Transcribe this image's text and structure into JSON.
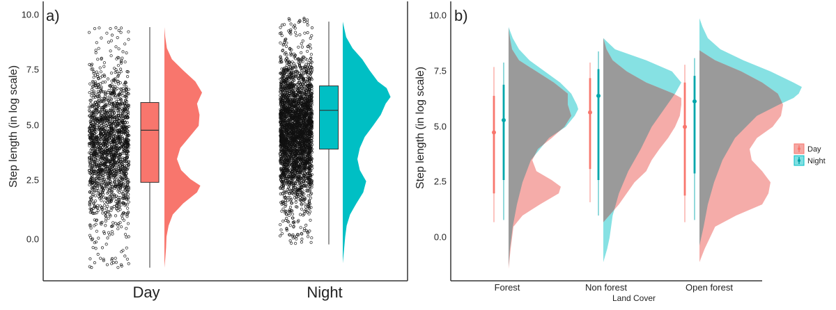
{
  "panel_a": {
    "label": "a)",
    "ylabel": "Step length (in log scale)",
    "yticks": [
      "0.0",
      "2.5",
      "5.0",
      "7.5",
      "10.0"
    ]
  },
  "panel_b": {
    "label": "b)",
    "ylabel": "Step length (in log scale)",
    "xlabel": "Land Cover",
    "yticks": [
      "0.0",
      "2.5",
      "5.0",
      "7.5",
      "10.0"
    ],
    "legend_title": ""
  },
  "colors": {
    "day": "#f8766d",
    "night": "#00bfc4",
    "day_light": "#f4a8a4",
    "night_light": "#7fdfe2",
    "overlap": "#9a9a9a"
  },
  "chart_data": [
    {
      "type": "raincloud",
      "ylim": [
        -1.7,
        10.2
      ],
      "categories": [
        "Day",
        "Night"
      ],
      "series": [
        {
          "name": "Day",
          "box": {
            "min": -1.4,
            "q1": 2.45,
            "median": 4.8,
            "q3": 6.05,
            "max": 9.45
          },
          "density": {
            "y": [
              -1.4,
              -1.0,
              -0.5,
              0.0,
              0.5,
              1.0,
              1.5,
              2.0,
              2.3,
              2.6,
              3.0,
              3.5,
              4.0,
              4.5,
              5.0,
              5.5,
              6.0,
              6.5,
              7.0,
              7.5,
              8.0,
              8.5,
              9.0,
              9.45
            ],
            "d": [
              0.0,
              0.02,
              0.04,
              0.05,
              0.1,
              0.2,
              0.45,
              0.78,
              0.86,
              0.62,
              0.4,
              0.3,
              0.38,
              0.6,
              0.82,
              0.84,
              0.78,
              0.9,
              0.74,
              0.45,
              0.18,
              0.06,
              0.02,
              0.0
            ]
          },
          "points": {
            "count": 1800,
            "range": [
              -1.4,
              9.45
            ]
          }
        },
        {
          "name": "Night",
          "box": {
            "min": -0.35,
            "q1": 3.95,
            "median": 5.7,
            "q3": 6.8,
            "max": 9.7
          },
          "density": {
            "y": [
              -1.2,
              -0.5,
              0.0,
              0.5,
              1.0,
              1.5,
              2.0,
              2.5,
              3.0,
              3.5,
              4.0,
              4.5,
              5.0,
              5.5,
              6.0,
              6.3,
              6.7,
              7.0,
              7.5,
              8.0,
              8.5,
              9.0,
              9.7
            ],
            "d": [
              0.0,
              0.03,
              0.05,
              0.08,
              0.15,
              0.28,
              0.42,
              0.48,
              0.35,
              0.3,
              0.35,
              0.45,
              0.62,
              0.78,
              0.88,
              0.98,
              0.9,
              0.72,
              0.55,
              0.4,
              0.2,
              0.07,
              0.0
            ]
          },
          "points": {
            "count": 3000,
            "range": [
              -0.35,
              9.85
            ]
          }
        }
      ]
    },
    {
      "type": "halfviolin-pointrange",
      "ylim": [
        -1.7,
        10.2
      ],
      "categories": [
        "Forest",
        "Non forest",
        "Open forest"
      ],
      "legend": [
        "Day",
        "Night"
      ],
      "series": [
        {
          "name": "Day",
          "pointrange": [
            {
              "category": "Forest",
              "point": 4.75,
              "inner": [
                2.0,
                6.4
              ],
              "outer": [
                0.7,
                7.7
              ]
            },
            {
              "category": "Non forest",
              "point": 5.65,
              "inner": [
                3.1,
                7.2
              ],
              "outer": [
                1.6,
                7.9
              ]
            },
            {
              "category": "Open forest",
              "point": 5.0,
              "inner": [
                1.9,
                7.0
              ],
              "outer": [
                0.7,
                7.8
              ]
            }
          ],
          "density": [
            {
              "category": "Forest",
              "y": [
                -1.4,
                -0.5,
                0.5,
                1.0,
                1.5,
                2.0,
                2.3,
                2.6,
                3.0,
                3.5,
                4.0,
                4.5,
                5.0,
                5.5,
                6.0,
                6.5,
                7.0,
                7.5,
                8.0,
                8.5,
                9.0,
                9.45
              ],
              "d": [
                0.0,
                0.03,
                0.07,
                0.2,
                0.45,
                0.72,
                0.75,
                0.62,
                0.4,
                0.34,
                0.42,
                0.62,
                0.8,
                0.9,
                0.85,
                0.85,
                0.65,
                0.4,
                0.15,
                0.05,
                0.02,
                0.0
              ]
            },
            {
              "category": "Non forest",
              "y": [
                0.7,
                1.5,
                2.5,
                3.0,
                3.5,
                4.0,
                4.5,
                5.0,
                5.5,
                6.0,
                6.3,
                6.5,
                7.0,
                7.5,
                8.0,
                8.5,
                9.0
              ],
              "d": [
                0.0,
                0.2,
                0.4,
                0.55,
                0.62,
                0.72,
                0.83,
                0.92,
                0.98,
                1.0,
                1.0,
                0.9,
                0.55,
                0.3,
                0.12,
                0.04,
                0.0
              ]
            },
            {
              "category": "Open forest",
              "y": [
                -1.1,
                -0.5,
                0.5,
                1.0,
                1.5,
                2.0,
                2.5,
                3.0,
                3.5,
                4.0,
                4.5,
                5.0,
                5.5,
                6.0,
                6.5,
                7.0,
                7.5,
                8.0,
                8.45
              ],
              "d": [
                0.0,
                0.05,
                0.15,
                0.35,
                0.6,
                0.66,
                0.68,
                0.6,
                0.5,
                0.48,
                0.55,
                0.7,
                0.78,
                0.8,
                0.75,
                0.6,
                0.4,
                0.15,
                0.0
              ]
            }
          ]
        },
        {
          "name": "Night",
          "pointrange": [
            {
              "category": "Forest",
              "point": 5.3,
              "inner": [
                2.6,
                6.9
              ],
              "outer": [
                0.8,
                7.9
              ]
            },
            {
              "category": "Non forest",
              "point": 6.4,
              "inner": [
                2.6,
                7.6
              ],
              "outer": [
                1.0,
                8.4
              ]
            },
            {
              "category": "Open forest",
              "point": 6.15,
              "inner": [
                2.9,
                7.3
              ],
              "outer": [
                0.8,
                8.1
              ]
            }
          ],
          "density": [
            {
              "category": "Forest",
              "y": [
                -1.3,
                -0.5,
                0.5,
                1.5,
                2.5,
                3.5,
                4.5,
                5.0,
                5.5,
                5.8,
                6.0,
                6.5,
                7.0,
                7.5,
                8.0,
                8.5,
                9.0,
                9.5
              ],
              "d": [
                0.0,
                0.02,
                0.06,
                0.12,
                0.2,
                0.32,
                0.58,
                0.82,
                0.95,
                1.0,
                0.98,
                0.9,
                0.74,
                0.52,
                0.3,
                0.15,
                0.06,
                0.0
              ]
            },
            {
              "category": "Non forest",
              "y": [
                -1.1,
                -0.5,
                0.0,
                0.5,
                1.0,
                2.0,
                3.0,
                4.0,
                5.0,
                6.0,
                6.5,
                7.0,
                7.5,
                8.0,
                8.5,
                9.0
              ],
              "d": [
                0.0,
                0.05,
                0.08,
                0.1,
                0.12,
                0.2,
                0.32,
                0.48,
                0.62,
                0.82,
                0.92,
                1.0,
                0.88,
                0.55,
                0.15,
                0.0
              ]
            },
            {
              "category": "Open forest",
              "y": [
                -0.35,
                0.5,
                1.5,
                2.5,
                3.5,
                4.5,
                5.5,
                6.0,
                6.3,
                6.5,
                6.8,
                7.0,
                7.5,
                8.0,
                8.5,
                9.0,
                9.5,
                9.9
              ],
              "d": [
                0.0,
                0.04,
                0.08,
                0.14,
                0.22,
                0.34,
                0.55,
                0.76,
                0.9,
                0.95,
                0.98,
                0.9,
                0.68,
                0.42,
                0.2,
                0.08,
                0.03,
                0.0
              ]
            }
          ]
        }
      ]
    }
  ]
}
